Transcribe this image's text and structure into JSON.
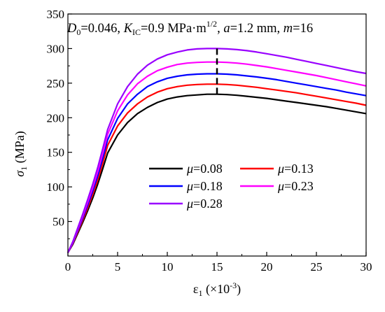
{
  "chart_data": {
    "type": "line",
    "title_parts": {
      "d0_sym": "D",
      "d0_sub": "0",
      "d0_val": "=0.046, ",
      "k_sym": "K",
      "k_sub": "IC",
      "k_val": "=0.9 MPa·m",
      "k_sup": "1/2",
      "k_sep": ", ",
      "a_sym": "a",
      "a_val": "=1.2 mm, ",
      "m_sym": "m",
      "m_val": "=16"
    },
    "xlabel_parts": {
      "sym": "ε",
      "sub": "1",
      "open": " (×10",
      "sup": "-3",
      "close": ")"
    },
    "ylabel_parts": {
      "sym": "σ",
      "sub": "1",
      "unit": " (MPa)"
    },
    "xlim": [
      0,
      30
    ],
    "ylim": [
      0,
      350
    ],
    "xticks": [
      "0",
      "5",
      "10",
      "15",
      "20",
      "25",
      "30"
    ],
    "yticks": [
      "50",
      "100",
      "150",
      "200",
      "250",
      "300",
      "350"
    ],
    "grid": false,
    "legend_position": "center",
    "legend_symbol": "μ",
    "peak_marker_x": 15,
    "series": [
      {
        "name": "=0.08",
        "color": "#000000",
        "x": [
          0,
          0.5,
          1,
          1.5,
          2,
          2.5,
          3,
          3.5,
          4,
          5,
          6,
          7,
          8,
          9,
          10,
          11,
          12,
          13,
          14,
          15,
          16,
          17,
          18,
          19,
          20,
          21,
          22,
          23,
          24,
          25,
          26,
          27,
          28,
          29,
          30
        ],
        "y": [
          5,
          17,
          33,
          49,
          66,
          84,
          104,
          126,
          149,
          175,
          193,
          206,
          215,
          222,
          227,
          230,
          232,
          233,
          234,
          234,
          233.5,
          232.5,
          231,
          229.5,
          228,
          226,
          224,
          222,
          220,
          218,
          216,
          213.5,
          211,
          208.5,
          206
        ]
      },
      {
        "name": "=0.13",
        "color": "#ff0000",
        "x": [
          0,
          0.5,
          1,
          1.5,
          2,
          2.5,
          3,
          3.5,
          4,
          5,
          6,
          7,
          8,
          9,
          10,
          11,
          12,
          13,
          14,
          15,
          16,
          17,
          18,
          19,
          20,
          21,
          22,
          23,
          24,
          25,
          26,
          27,
          28,
          29,
          30
        ],
        "y": [
          5,
          18,
          35,
          52,
          70,
          89,
          110,
          134,
          160,
          188,
          207,
          220,
          230,
          237,
          242,
          245,
          247,
          248,
          248.5,
          248.5,
          248,
          247,
          245.5,
          244,
          242,
          240,
          238,
          236,
          233.5,
          231,
          228.5,
          226,
          223.5,
          221,
          218
        ]
      },
      {
        "name": "=0.18",
        "color": "#0000ff",
        "x": [
          0,
          0.5,
          1,
          1.5,
          2,
          2.5,
          3,
          3.5,
          4,
          5,
          6,
          7,
          8,
          9,
          10,
          11,
          12,
          13,
          14,
          15,
          16,
          17,
          18,
          19,
          20,
          21,
          22,
          23,
          24,
          25,
          26,
          27,
          28,
          29,
          30
        ],
        "y": [
          5,
          19,
          37,
          55,
          74,
          94,
          116,
          141,
          168,
          199,
          220,
          234,
          245,
          252,
          257,
          260,
          262,
          263,
          263.5,
          263.5,
          263,
          262,
          260.5,
          259,
          257,
          255,
          252.5,
          250,
          247.5,
          245,
          242.5,
          240,
          237,
          234.5,
          232
        ]
      },
      {
        "name": "=0.23",
        "color": "#ff00ff",
        "x": [
          0,
          0.5,
          1,
          1.5,
          2,
          2.5,
          3,
          3.5,
          4,
          5,
          6,
          7,
          8,
          9,
          10,
          11,
          12,
          13,
          14,
          15,
          16,
          17,
          18,
          19,
          20,
          21,
          22,
          23,
          24,
          25,
          26,
          27,
          28,
          29,
          30
        ],
        "y": [
          5,
          20,
          39,
          58,
          78,
          99,
          122,
          148,
          176,
          210,
          233,
          249,
          260,
          268,
          273,
          277,
          279,
          280,
          280.5,
          280.5,
          280,
          279,
          277.5,
          275.5,
          273.5,
          271,
          268.5,
          266,
          263.5,
          261,
          258,
          255,
          252,
          249,
          246
        ]
      },
      {
        "name": "=0.28",
        "color": "#9900ff",
        "x": [
          0,
          0.5,
          1,
          1.5,
          2,
          2.5,
          3,
          3.5,
          4,
          5,
          6,
          7,
          8,
          9,
          10,
          11,
          12,
          13,
          14,
          15,
          16,
          17,
          18,
          19,
          20,
          21,
          22,
          23,
          24,
          25,
          26,
          27,
          28,
          29,
          30
        ],
        "y": [
          5,
          21,
          41,
          61,
          82,
          104,
          128,
          155,
          183,
          220,
          245,
          263,
          276,
          285,
          291,
          295,
          298,
          299.5,
          300,
          300,
          299.5,
          298.5,
          297,
          295,
          292.5,
          290,
          287.5,
          284.5,
          281.5,
          278.5,
          275.5,
          272.5,
          269.5,
          266.5,
          264
        ]
      }
    ]
  }
}
